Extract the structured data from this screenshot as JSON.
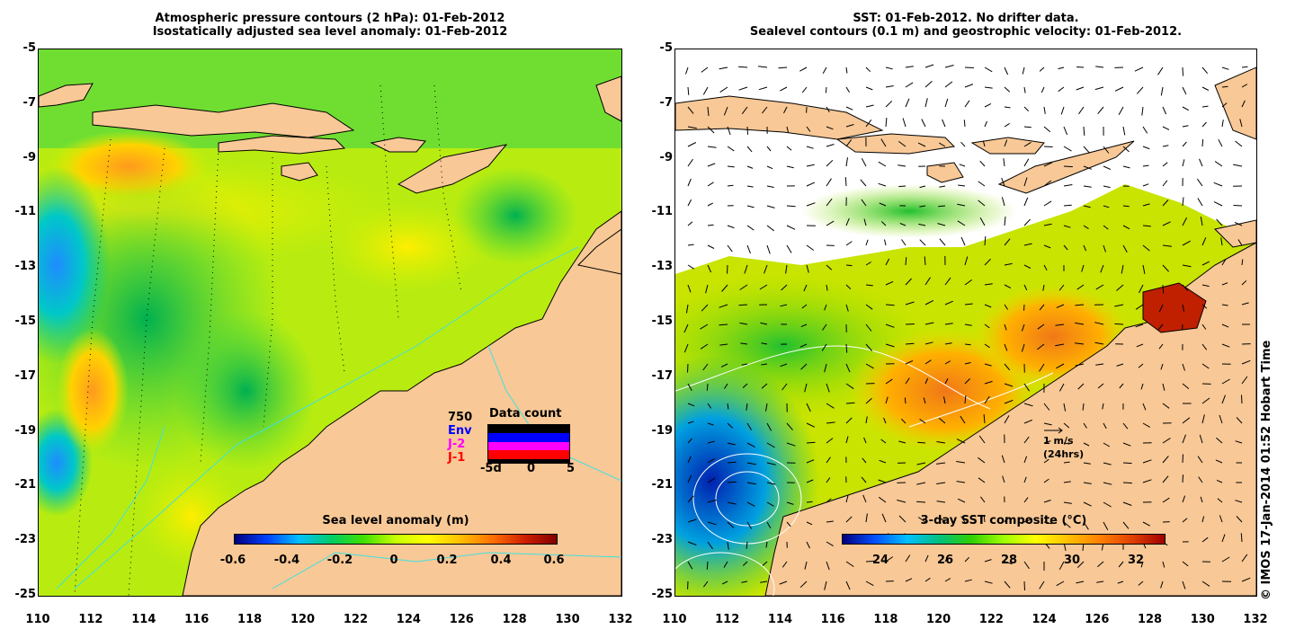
{
  "left_panel": {
    "title_line1": "Atmospheric pressure contours (2 hPa): 01-Feb-2012",
    "title_line2": "Isostatically adjusted sea level anomaly: 01-Feb-2012",
    "colorbar_title": "Sea level anomaly (m)",
    "colorbar_ticks": [
      "-0.6",
      "-0.4",
      "-0.2",
      "0",
      "0.2",
      "0.4",
      "0.6"
    ],
    "data_count": {
      "title": "Data count",
      "sat_labels": [
        "Env",
        "J-2",
        "J-1"
      ],
      "sat_colors": [
        "#0000ff",
        "#ff00ff",
        "#ff0000"
      ],
      "overlap_label": "750",
      "xticks": [
        "-5d",
        "0",
        "5"
      ]
    }
  },
  "right_panel": {
    "title_line1": "SST: 01-Feb-2012. No drifter data.",
    "title_line2": "Sealevel contours (0.1 m) and geostrophic velocity: 01-Feb-2012.",
    "colorbar_title": "3-day SST composite (°C)",
    "colorbar_ticks": [
      "24",
      "26",
      "28",
      "30",
      "32"
    ],
    "velocity_scale": "1 m/s",
    "velocity_note": "(24hrs)"
  },
  "axes": {
    "y_ticks": [
      "-5",
      "-7",
      "-9",
      "-11",
      "-13",
      "-15",
      "-17",
      "-19",
      "-21",
      "-23",
      "-25"
    ],
    "x_ticks": [
      "110",
      "112",
      "114",
      "116",
      "118",
      "120",
      "122",
      "124",
      "126",
      "128",
      "130",
      "132"
    ]
  },
  "colors": {
    "land": "#f8c896",
    "coast_contour": "#40e0e0"
  },
  "copyright": "© IMOS 17-Jan-2014 01:52 Hobart Time"
}
